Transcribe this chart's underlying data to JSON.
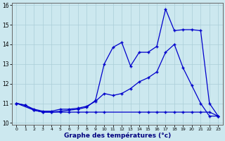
{
  "xlabel": "Graphe des températures (°c)",
  "bg_color": "#cce8ef",
  "grid_color": "#aacdd8",
  "line_color": "#0000cc",
  "xlim": [
    -0.5,
    23.5
  ],
  "ylim": [
    9.9,
    16.1
  ],
  "xticks": [
    0,
    1,
    2,
    3,
    4,
    5,
    6,
    7,
    8,
    9,
    10,
    11,
    12,
    13,
    14,
    15,
    16,
    17,
    18,
    19,
    20,
    21,
    22,
    23
  ],
  "yticks": [
    10,
    11,
    12,
    13,
    14,
    15,
    16
  ],
  "line1_x": [
    0,
    1,
    2,
    3,
    4,
    5,
    6,
    7,
    8,
    9,
    10,
    11,
    12,
    13,
    14,
    15,
    16,
    17,
    18,
    19,
    20,
    21,
    22,
    23
  ],
  "line1_y": [
    11.0,
    10.9,
    10.7,
    10.6,
    10.6,
    10.7,
    10.7,
    10.75,
    10.85,
    11.1,
    11.5,
    11.4,
    11.5,
    11.75,
    12.1,
    12.3,
    12.6,
    13.6,
    14.0,
    12.8,
    11.9,
    11.0,
    10.35,
    10.35
  ],
  "line2_x": [
    0,
    1,
    2,
    3,
    4,
    5,
    6,
    7,
    8,
    9,
    10,
    11,
    12,
    13,
    14,
    15,
    16,
    17,
    18,
    19,
    20,
    21,
    22,
    23
  ],
  "line2_y": [
    11.0,
    10.9,
    10.65,
    10.55,
    10.55,
    10.6,
    10.65,
    10.7,
    10.8,
    11.15,
    13.0,
    13.85,
    14.1,
    12.9,
    13.6,
    13.6,
    13.9,
    15.8,
    14.7,
    14.75,
    14.75,
    14.7,
    11.0,
    10.35
  ],
  "line3_x": [
    0,
    2,
    3,
    4,
    5,
    6,
    7,
    8,
    9,
    10,
    14,
    15,
    16,
    17,
    18,
    19,
    20,
    21,
    22,
    23
  ],
  "line3_y": [
    11.0,
    10.65,
    10.55,
    10.55,
    10.55,
    10.55,
    10.55,
    10.55,
    10.55,
    10.55,
    10.55,
    10.55,
    10.55,
    10.55,
    10.55,
    10.55,
    10.55,
    10.55,
    10.55,
    10.35
  ]
}
